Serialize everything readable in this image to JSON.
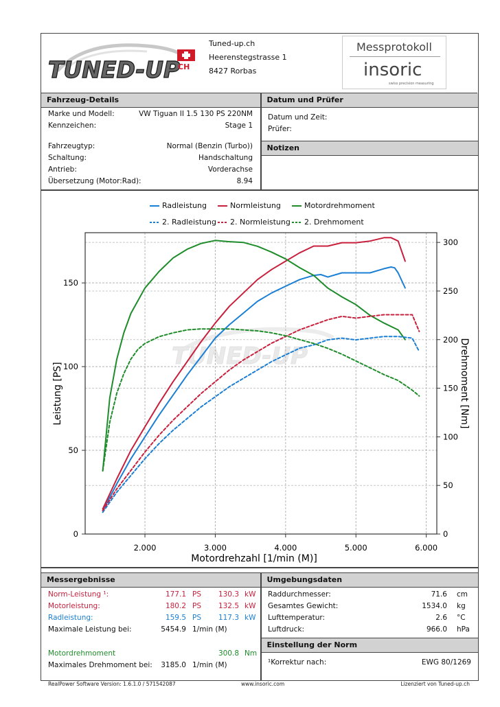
{
  "header": {
    "company_name": "Tuned-up.ch",
    "street": "Heerenstegstrasse 1",
    "city": "8427 Rorbas",
    "logo_text": "TUNED-UP",
    "logo_suffix": "CH",
    "protocol_title": "Messprotokoll",
    "brand": "insoric",
    "brand_tagline": "swiss precision measuring"
  },
  "vehicle": {
    "title": "Fahrzeug-Details",
    "rows_a": [
      {
        "label": "Marke und Modell:",
        "value": "VW Tiguan II 1.5 130 PS 220NM"
      },
      {
        "label": "Kennzeichen:",
        "value": "Stage 1"
      }
    ],
    "rows_b": [
      {
        "label": "Fahrzeugtyp:",
        "value": "Normal (Benzin (Turbo))"
      },
      {
        "label": "Schaltung:",
        "value": "Handschaltung"
      },
      {
        "label": "Antrieb:",
        "value": "Vorderachse"
      },
      {
        "label": "Übersetzung (Motor:Rad):",
        "value": "8.94"
      }
    ]
  },
  "date_inspector": {
    "title": "Datum und Prüfer",
    "date_label": "Datum und Zeit:",
    "inspector_label": "Prüfer:"
  },
  "notes": {
    "title": "Notizen"
  },
  "results": {
    "title": "Messergebnisse",
    "norm_label": "Norm-Leistung ¹:",
    "norm_ps": "177.1",
    "norm_kw": "130.3",
    "motor_label": "Motorleistung:",
    "motor_ps": "180.2",
    "motor_kw": "132.5",
    "rad_label": "Radleistung:",
    "rad_ps": "159.5",
    "rad_kw": "117.3",
    "unit_ps": "PS",
    "unit_kw": "kW",
    "maxp_label": "Maximale Leistung bei:",
    "maxp_value": "5454.9",
    "rpm_unit": "1/min (M)",
    "torque_label": "Motordrehmoment",
    "torque_value": "300.8",
    "torque_unit": "Nm",
    "maxt_label": "Maximales Drehmoment bei:",
    "maxt_value": "3185.0",
    "rpm_unit2": "1/min (M)"
  },
  "environment": {
    "title": "Umgebungsdaten",
    "rows": [
      {
        "label": "Raddurchmesser:",
        "value": "71.6",
        "unit": "cm"
      },
      {
        "label": "Gesamtes Gewicht:",
        "value": "1534.0",
        "unit": "kg"
      },
      {
        "label": "Lufttemperatur:",
        "value": "2.6",
        "unit": "°C"
      },
      {
        "label": "Luftdruck:",
        "value": "966.0",
        "unit": "hPa"
      }
    ]
  },
  "norm_setting": {
    "title": "Einstellung der Norm",
    "label": "¹Korrektur nach:",
    "value": "EWG 80/1269"
  },
  "footer": {
    "software": "RealPower Software Version: 1.6.1.0 / 571542087",
    "website": "www.insoric.com",
    "license": "Lizenziert von Tuned-up.ch"
  },
  "colors": {
    "rad": "#1a7fd4",
    "norm": "#c8203c",
    "torque": "#1e8c2a"
  },
  "chart_data": {
    "type": "line",
    "xlabel": "Motordrehzahl [1/min (M)]",
    "ylabel": "Leistung [PS]",
    "y2label": "Drehmoment [Nm]",
    "xlim": [
      1150,
      6150
    ],
    "ylim": [
      0,
      180
    ],
    "y2lim": [
      0,
      310
    ],
    "x_ticks": [
      "2.000",
      "3.000",
      "4.000",
      "5.000",
      "6.000"
    ],
    "y_ticks": [
      "0",
      "50",
      "100",
      "150"
    ],
    "y2_ticks": [
      "0",
      "50",
      "100",
      "150",
      "200",
      "250",
      "300"
    ],
    "grid": true,
    "legend_placement": "top",
    "series": [
      {
        "name": "Radleistung",
        "axis": "left",
        "style": "solid",
        "color": "#1a7fd4",
        "x": [
          1400,
          1600,
          1800,
          2000,
          2200,
          2400,
          2600,
          2800,
          3000,
          3200,
          3400,
          3600,
          3800,
          4000,
          4200,
          4400,
          4500,
          4600,
          4800,
          5000,
          5200,
          5400,
          5500,
          5550,
          5600,
          5700
        ],
        "y": [
          14,
          30,
          45,
          58,
          71,
          83,
          95,
          106,
          117,
          125,
          132,
          139,
          144,
          148,
          152,
          154.5,
          155,
          153.5,
          156,
          156,
          156,
          158.5,
          159.5,
          159,
          156,
          147
        ]
      },
      {
        "name": "Normleistung",
        "axis": "left",
        "style": "solid",
        "color": "#c8203c",
        "x": [
          1400,
          1600,
          1800,
          2000,
          2200,
          2400,
          2600,
          2800,
          3000,
          3200,
          3400,
          3600,
          3800,
          4000,
          4200,
          4400,
          4600,
          4800,
          5000,
          5200,
          5400,
          5500,
          5600,
          5700
        ],
        "y": [
          15,
          33,
          50,
          64,
          78,
          91,
          103,
          115,
          126,
          136,
          144,
          152,
          158,
          163,
          168,
          172,
          172,
          174,
          174,
          175,
          177,
          177,
          175,
          163
        ]
      },
      {
        "name": "Motordrehmoment",
        "axis": "right",
        "style": "solid",
        "color": "#1e8c2a",
        "x": [
          1400,
          1500,
          1600,
          1700,
          1800,
          1900,
          2000,
          2200,
          2400,
          2600,
          2800,
          3000,
          3185,
          3400,
          3600,
          3800,
          4000,
          4200,
          4400,
          4600,
          4800,
          5000,
          5200,
          5400,
          5600,
          5700
        ],
        "y": [
          65,
          140,
          180,
          207,
          227,
          240,
          253,
          270,
          284,
          293,
          299,
          302,
          300.8,
          300,
          296,
          290,
          283,
          274,
          266,
          253,
          244,
          236,
          225,
          217,
          210,
          200
        ]
      },
      {
        "name": "2. Radleistung",
        "axis": "left",
        "style": "dashed",
        "color": "#1a7fd4",
        "x": [
          1400,
          1600,
          1800,
          2000,
          2200,
          2400,
          2600,
          2800,
          3000,
          3200,
          3400,
          3600,
          3800,
          4000,
          4200,
          4400,
          4600,
          4800,
          5000,
          5200,
          5400,
          5600,
          5800,
          5900
        ],
        "y": [
          13,
          25,
          35,
          45,
          54,
          62,
          69,
          76,
          82,
          88,
          93,
          98,
          103,
          107,
          111,
          113,
          116,
          117,
          116,
          117,
          118,
          118,
          117,
          109
        ]
      },
      {
        "name": "2. Normleistung",
        "axis": "left",
        "style": "dashed",
        "color": "#c8203c",
        "x": [
          1400,
          1600,
          1800,
          2000,
          2200,
          2400,
          2600,
          2800,
          3000,
          3200,
          3400,
          3600,
          3800,
          4000,
          4200,
          4400,
          4600,
          4800,
          5000,
          5200,
          5400,
          5600,
          5800,
          5900
        ],
        "y": [
          14,
          27,
          38,
          49,
          59,
          68,
          76,
          84,
          91,
          98,
          104,
          109,
          114,
          118,
          122,
          125,
          128,
          130,
          129,
          130,
          131,
          131,
          131,
          121
        ]
      },
      {
        "name": "2. Drehmoment",
        "axis": "right",
        "style": "dashed",
        "color": "#1e8c2a",
        "x": [
          1400,
          1500,
          1600,
          1700,
          1800,
          1900,
          2000,
          2200,
          2400,
          2600,
          2800,
          3000,
          3200,
          3400,
          3600,
          3800,
          4000,
          4200,
          4400,
          4600,
          4800,
          5000,
          5200,
          5400,
          5600,
          5800,
          5900
        ],
        "y": [
          65,
          115,
          145,
          165,
          180,
          190,
          196,
          203,
          207,
          210,
          211,
          211,
          211,
          210,
          209,
          207,
          204,
          200,
          196,
          191,
          185,
          178,
          171,
          164,
          158,
          148,
          142
        ]
      }
    ]
  }
}
